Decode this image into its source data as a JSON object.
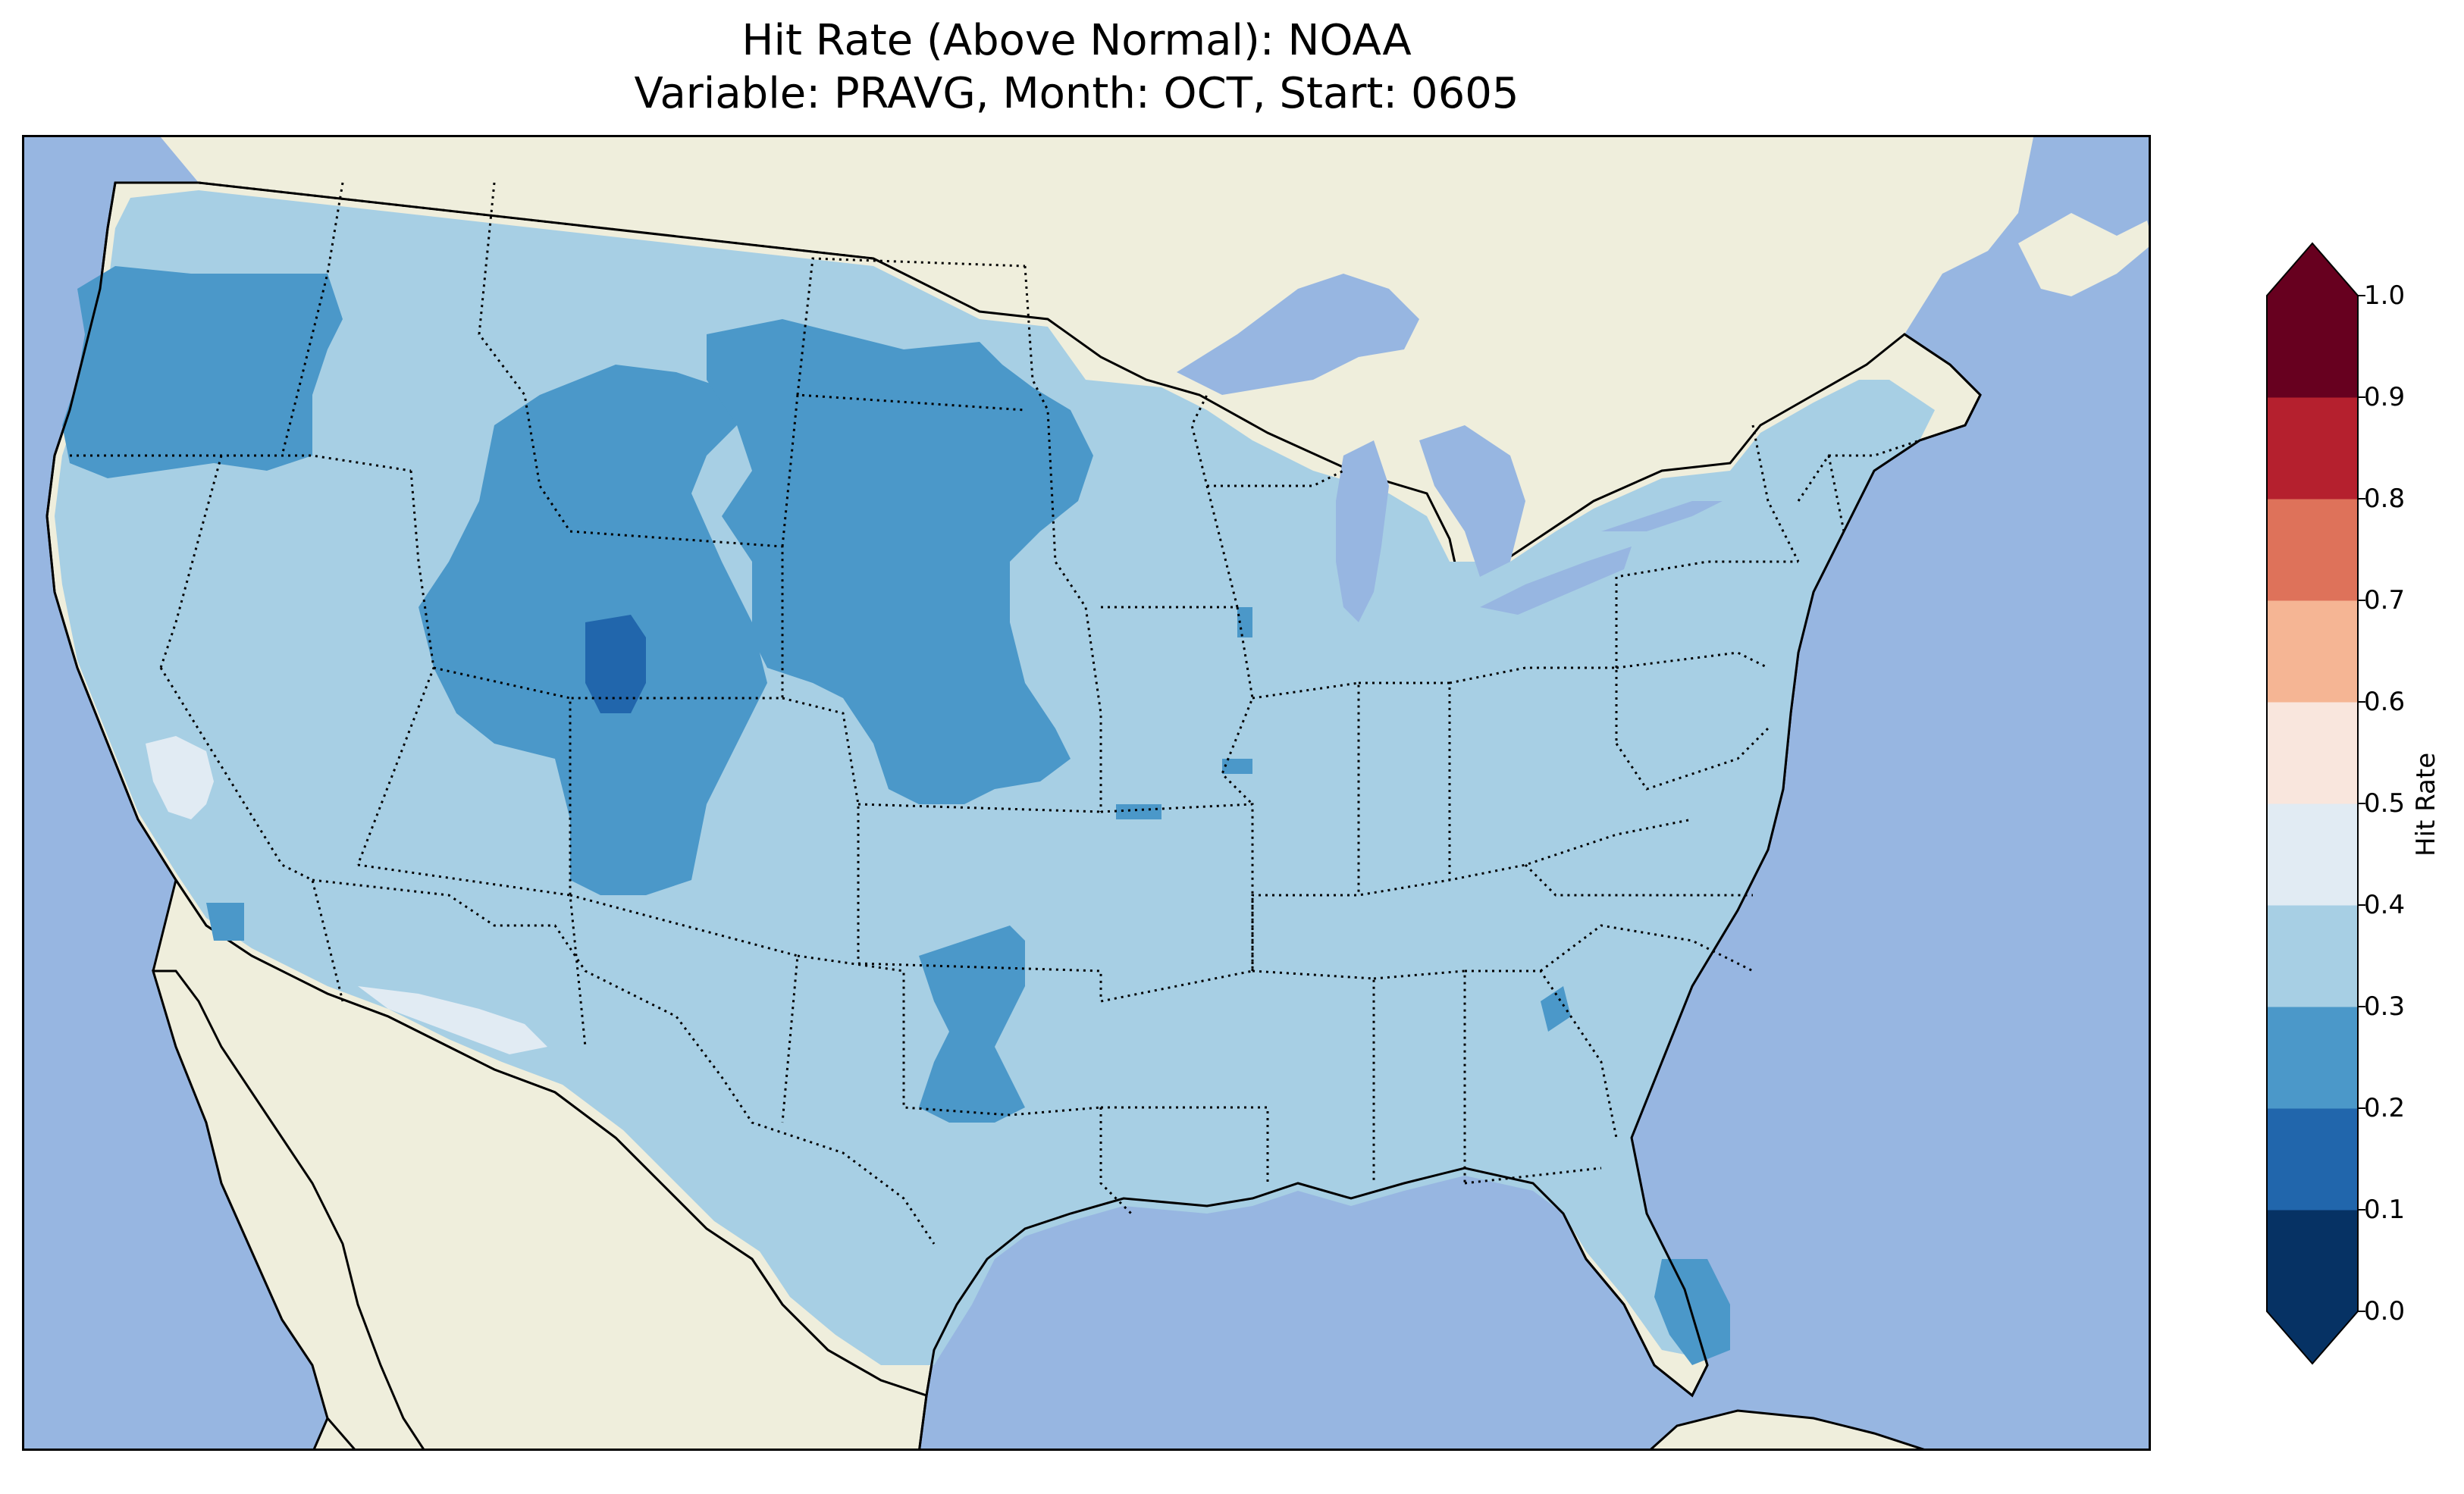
{
  "title": {
    "line1": "Hit Rate (Above Normal): NOAA",
    "line2": "Variable: PRAVG, Month: OCT, Start: 0605"
  },
  "colors": {
    "ocean": "#97b6e1",
    "land": "#efeedc",
    "lakes": "#97b6e1"
  },
  "colorbar": {
    "label": "Hit Rate",
    "ticks": [
      "0.0",
      "0.1",
      "0.2",
      "0.3",
      "0.4",
      "0.5",
      "0.6",
      "0.7",
      "0.8",
      "0.9",
      "1.0"
    ],
    "bins": [
      {
        "min": 0.0,
        "max": 0.1,
        "color": "#063264"
      },
      {
        "min": 0.1,
        "max": 0.2,
        "color": "#2166ac"
      },
      {
        "min": 0.2,
        "max": 0.3,
        "color": "#4b98c9"
      },
      {
        "min": 0.3,
        "max": 0.4,
        "color": "#a7cfe4"
      },
      {
        "min": 0.4,
        "max": 0.5,
        "color": "#e1ebf3"
      },
      {
        "min": 0.5,
        "max": 0.6,
        "color": "#f9e6dd"
      },
      {
        "min": 0.6,
        "max": 0.7,
        "color": "#f5b594"
      },
      {
        "min": 0.7,
        "max": 0.8,
        "color": "#de725a"
      },
      {
        "min": 0.8,
        "max": 0.9,
        "color": "#b5202e"
      },
      {
        "min": 0.9,
        "max": 1.0,
        "color": "#67001f"
      }
    ],
    "extend": "both"
  },
  "field": {
    "dominant_bin": "0.3-0.4",
    "regions": [
      {
        "name": "pacific-northwest",
        "bin": "0.2-0.3"
      },
      {
        "name": "northern-rockies",
        "bin": "0.2-0.3"
      },
      {
        "name": "north-dakota",
        "bin": "0.2-0.3"
      },
      {
        "name": "wyoming-colorado",
        "bin": "0.2-0.3"
      },
      {
        "name": "south-dakota-nebraska",
        "bin": "0.2-0.3"
      },
      {
        "name": "utah-colorado-core",
        "bin": "0.1-0.2"
      },
      {
        "name": "oklahoma-texas-panhandle",
        "bin": "0.2-0.3"
      },
      {
        "name": "south-florida",
        "bin": "0.2-0.3"
      },
      {
        "name": "central-california",
        "bin": "0.4-0.5"
      },
      {
        "name": "arizona-mexico-border",
        "bin": "0.4-0.5"
      }
    ]
  }
}
